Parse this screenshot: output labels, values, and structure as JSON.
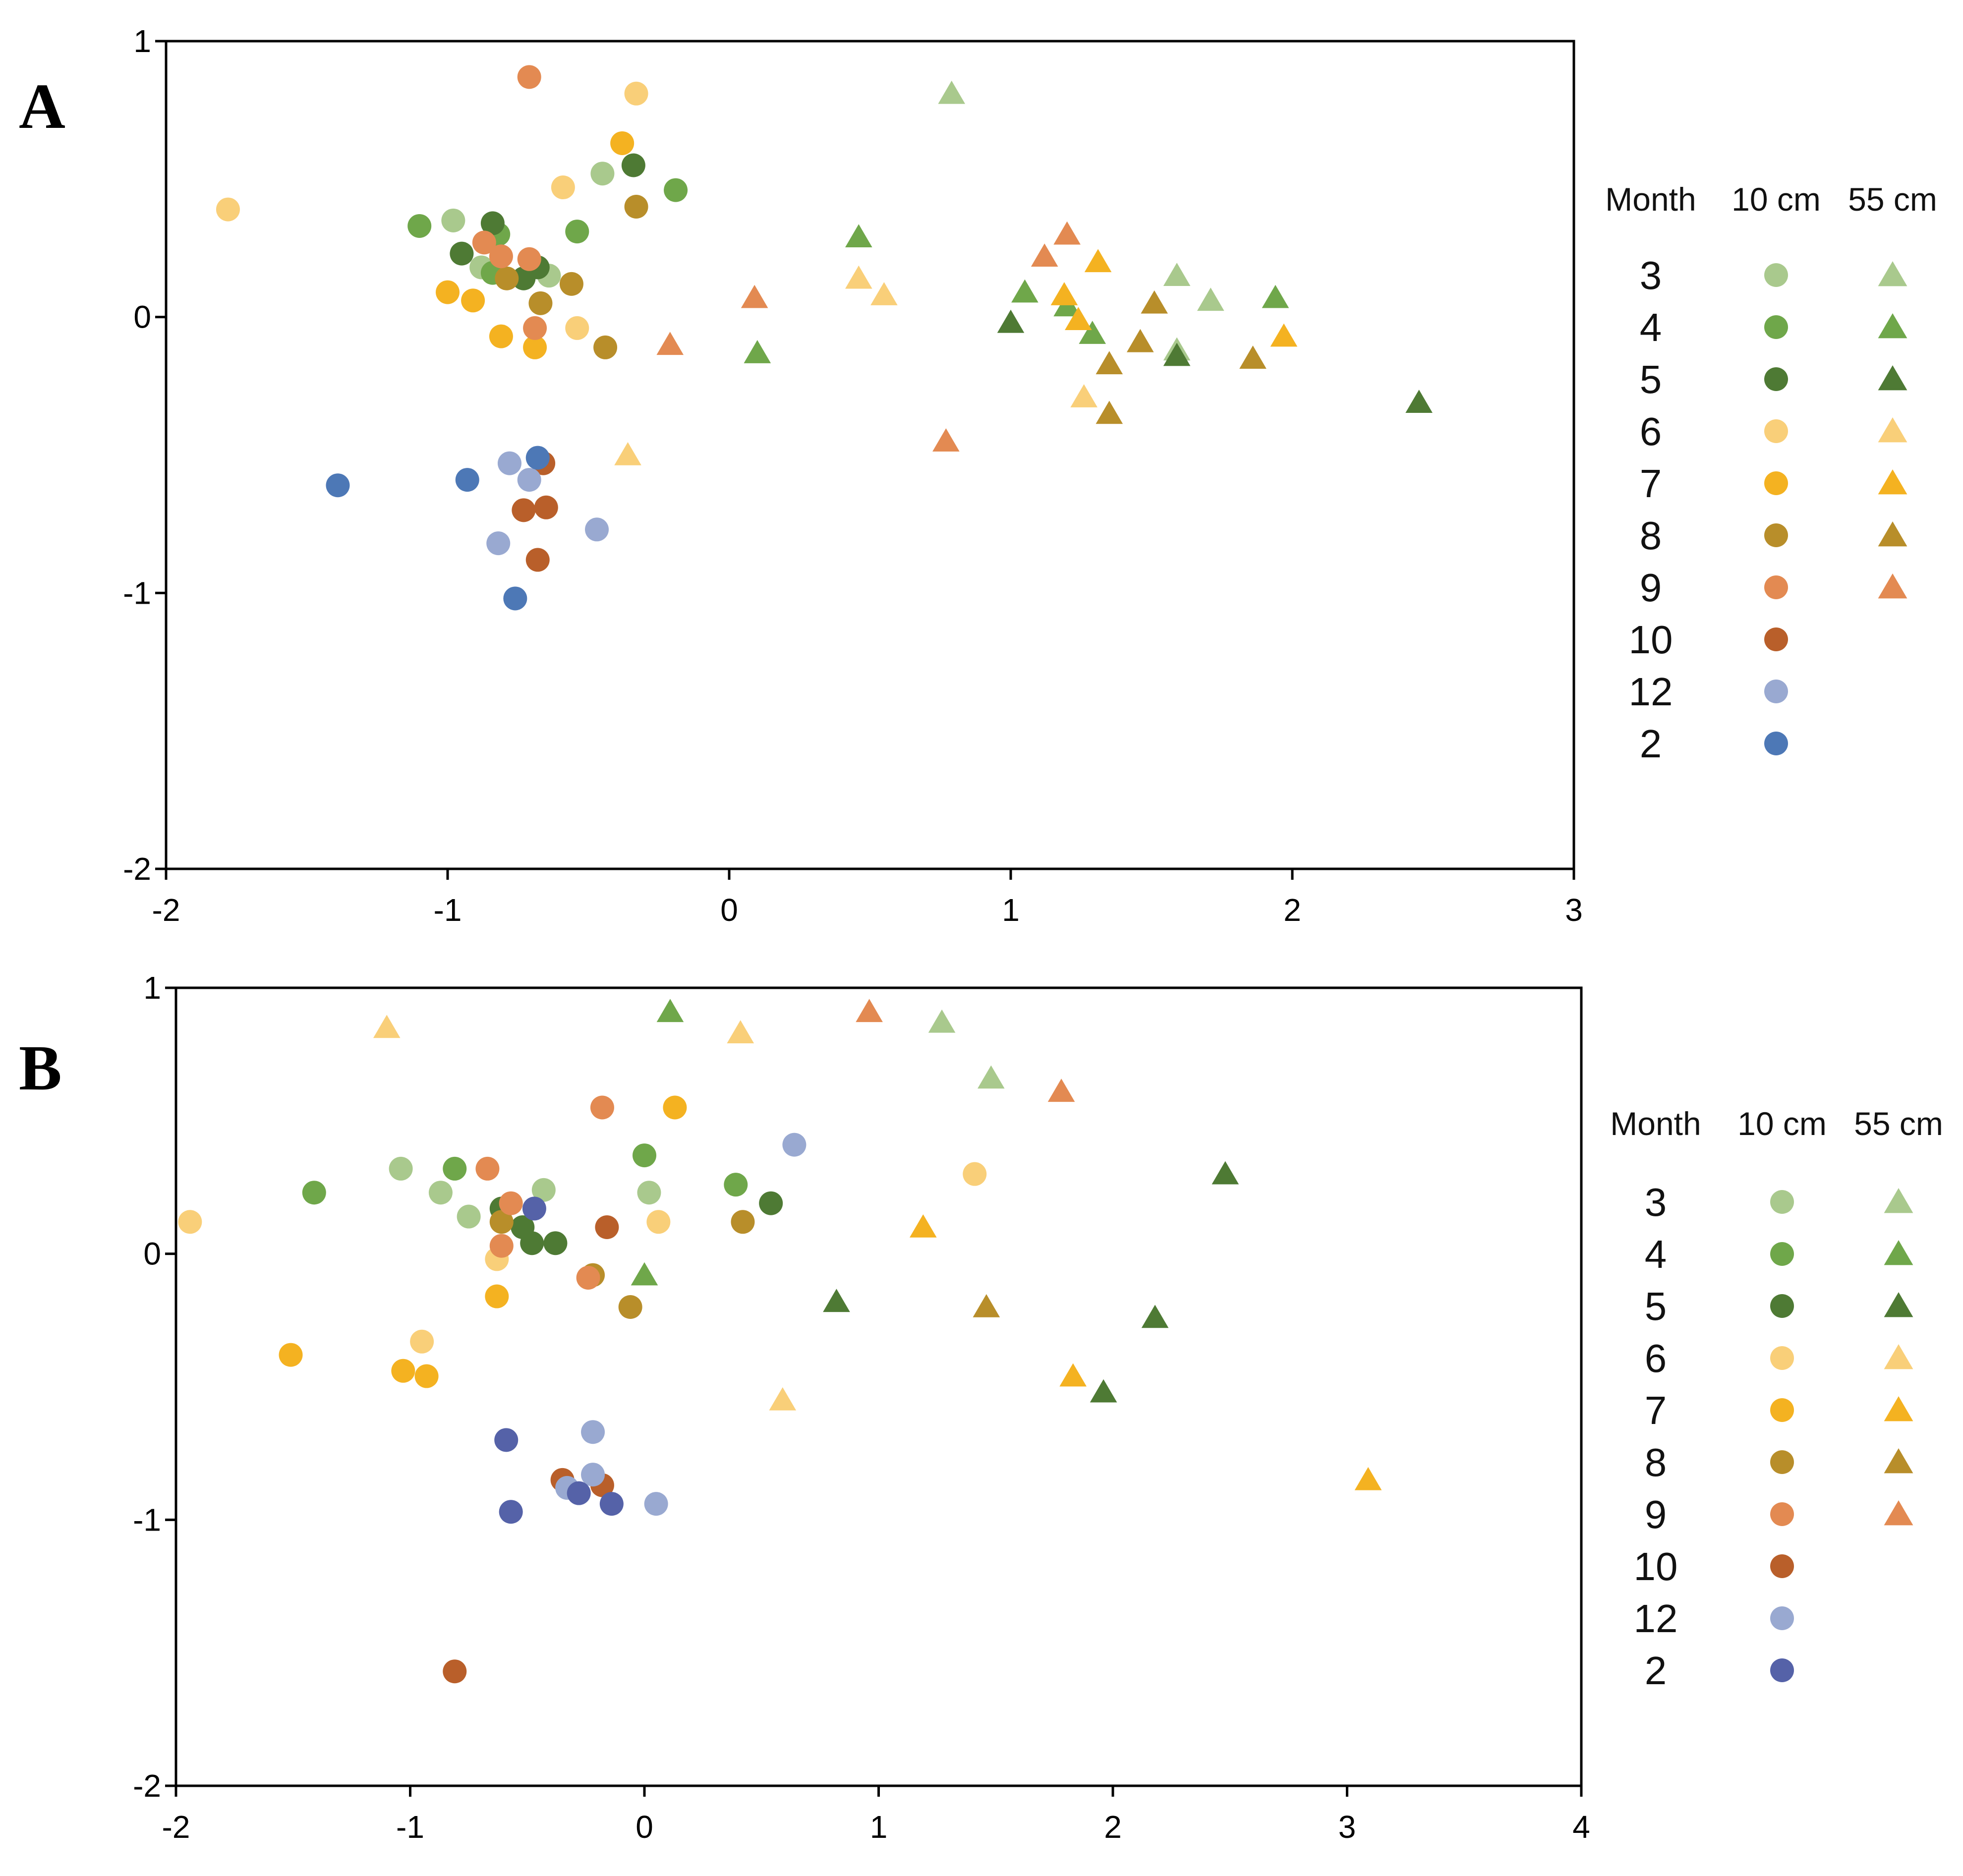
{
  "colors": {
    "m3": "#a9c98d",
    "m4": "#6fa74a",
    "m5": "#4e7a34",
    "m6": "#f9cf79",
    "m7": "#f4b221",
    "m8": "#b88e2a",
    "m9": "#e38a52",
    "m10": "#b95f2a",
    "m12": "#99a9d1",
    "m2": "#4d78b6",
    "m2B": "#5562a8",
    "axis": "#000000",
    "background": "#ffffff"
  },
  "chart_data": [
    {
      "type": "scatter",
      "panel": "A",
      "xlim": [
        -2,
        3
      ],
      "ylim": [
        -2,
        1
      ],
      "xticks": [
        "-2",
        "-1",
        "0",
        "1",
        "2",
        "3"
      ],
      "yticks": [
        "1",
        "0",
        "-1",
        "-2"
      ],
      "grid": false,
      "legend": {
        "position": "right",
        "header": [
          "Month",
          "10 cm",
          "55 cm"
        ],
        "months": [
          "3",
          "4",
          "5",
          "6",
          "7",
          "8",
          "9",
          "10",
          "12",
          "2"
        ],
        "has55": [
          true,
          true,
          true,
          true,
          true,
          true,
          true,
          false,
          false,
          false
        ]
      },
      "series": [
        {
          "name": "3 - 10 cm",
          "month": "3",
          "depth": "10 cm",
          "shape": "circle",
          "color": "m3",
          "points": [
            [
              -0.98,
              0.35
            ],
            [
              -0.45,
              0.52
            ],
            [
              -0.88,
              0.18
            ],
            [
              -0.64,
              0.15
            ]
          ]
        },
        {
          "name": "4 - 10 cm",
          "month": "4",
          "depth": "10 cm",
          "shape": "circle",
          "color": "m4",
          "points": [
            [
              -1.1,
              0.33
            ],
            [
              -0.54,
              0.31
            ],
            [
              -0.19,
              0.46
            ],
            [
              -0.84,
              0.16
            ],
            [
              -0.82,
              0.3
            ]
          ]
        },
        {
          "name": "5 - 10 cm",
          "month": "5",
          "depth": "10 cm",
          "shape": "circle",
          "color": "m5",
          "points": [
            [
              -0.95,
              0.23
            ],
            [
              -0.84,
              0.34
            ],
            [
              -0.34,
              0.55
            ],
            [
              -0.73,
              0.14
            ],
            [
              -0.68,
              0.18
            ]
          ]
        },
        {
          "name": "6 - 10 cm",
          "month": "6",
          "depth": "10 cm",
          "shape": "circle",
          "color": "m6",
          "points": [
            [
              -1.78,
              0.39
            ],
            [
              -0.59,
              0.47
            ],
            [
              -0.33,
              0.81
            ],
            [
              -0.54,
              -0.04
            ]
          ]
        },
        {
          "name": "7 - 10 cm",
          "month": "7",
          "depth": "10 cm",
          "shape": "circle",
          "color": "m7",
          "points": [
            [
              -1.0,
              0.09
            ],
            [
              -0.91,
              0.06
            ],
            [
              -0.81,
              -0.07
            ],
            [
              -0.69,
              -0.11
            ],
            [
              -0.38,
              0.63
            ]
          ]
        },
        {
          "name": "8 - 10 cm",
          "month": "8",
          "depth": "10 cm",
          "shape": "circle",
          "color": "m8",
          "points": [
            [
              -0.79,
              0.14
            ],
            [
              -0.67,
              0.05
            ],
            [
              -0.56,
              0.12
            ],
            [
              -0.44,
              -0.11
            ],
            [
              -0.33,
              0.4
            ]
          ]
        },
        {
          "name": "9 - 10 cm",
          "month": "9",
          "depth": "10 cm",
          "shape": "circle",
          "color": "m9",
          "points": [
            [
              -0.71,
              0.87
            ],
            [
              -0.87,
              0.27
            ],
            [
              -0.81,
              0.22
            ],
            [
              -0.71,
              0.21
            ],
            [
              -0.69,
              -0.04
            ]
          ]
        },
        {
          "name": "10 - 10 cm",
          "month": "10",
          "depth": "10 cm",
          "shape": "circle",
          "color": "m10",
          "points": [
            [
              -0.73,
              -0.7
            ],
            [
              -0.65,
              -0.69
            ],
            [
              -0.68,
              -0.88
            ],
            [
              -0.66,
              -0.53
            ]
          ]
        },
        {
          "name": "12 - 10 cm",
          "month": "12",
          "depth": "10 cm",
          "shape": "circle",
          "color": "m12",
          "points": [
            [
              -0.78,
              -0.53
            ],
            [
              -0.71,
              -0.59
            ],
            [
              -0.82,
              -0.82
            ],
            [
              -0.47,
              -0.77
            ]
          ]
        },
        {
          "name": "2 - 10 cm",
          "month": "2",
          "depth": "10 cm",
          "shape": "circle",
          "color": "m2",
          "points": [
            [
              -1.39,
              -0.61
            ],
            [
              -0.93,
              -0.59
            ],
            [
              -0.68,
              -0.51
            ],
            [
              -0.76,
              -1.02
            ]
          ]
        },
        {
          "name": "3 - 55 cm",
          "month": "3",
          "depth": "55 cm",
          "shape": "triangle",
          "color": "m3",
          "points": [
            [
              0.79,
              0.81
            ],
            [
              1.59,
              0.15
            ],
            [
              1.71,
              0.06
            ],
            [
              1.59,
              -0.12
            ]
          ]
        },
        {
          "name": "4 - 55 cm",
          "month": "4",
          "depth": "55 cm",
          "shape": "triangle",
          "color": "m4",
          "points": [
            [
              0.46,
              0.29
            ],
            [
              0.1,
              -0.13
            ],
            [
              1.05,
              0.09
            ],
            [
              1.2,
              0.04
            ],
            [
              1.29,
              -0.06
            ],
            [
              1.94,
              0.07
            ]
          ]
        },
        {
          "name": "5 - 55 cm",
          "month": "5",
          "depth": "55 cm",
          "shape": "triangle",
          "color": "m5",
          "points": [
            [
              1.0,
              -0.02
            ],
            [
              1.59,
              -0.14
            ],
            [
              2.45,
              -0.31
            ]
          ]
        },
        {
          "name": "6 - 55 cm",
          "month": "6",
          "depth": "55 cm",
          "shape": "triangle",
          "color": "m6",
          "points": [
            [
              -0.36,
              -0.5
            ],
            [
              0.46,
              0.14
            ],
            [
              0.55,
              0.08
            ],
            [
              1.26,
              -0.29
            ]
          ]
        },
        {
          "name": "7 - 55 cm",
          "month": "7",
          "depth": "55 cm",
          "shape": "triangle",
          "color": "m7",
          "points": [
            [
              1.19,
              0.08
            ],
            [
              1.24,
              -0.01
            ],
            [
              1.31,
              0.2
            ],
            [
              1.97,
              -0.07
            ]
          ]
        },
        {
          "name": "8 - 55 cm",
          "month": "8",
          "depth": "55 cm",
          "shape": "triangle",
          "color": "m8",
          "points": [
            [
              1.35,
              -0.17
            ],
            [
              1.35,
              -0.35
            ],
            [
              1.46,
              -0.09
            ],
            [
              1.51,
              0.05
            ],
            [
              1.86,
              -0.15
            ]
          ]
        },
        {
          "name": "9 - 55 cm",
          "month": "9",
          "depth": "55 cm",
          "shape": "triangle",
          "color": "m9",
          "points": [
            [
              -0.21,
              -0.1
            ],
            [
              0.09,
              0.07
            ],
            [
              0.77,
              -0.45
            ],
            [
              1.12,
              0.22
            ],
            [
              1.2,
              0.3
            ]
          ]
        }
      ]
    },
    {
      "type": "scatter",
      "panel": "B",
      "xlim": [
        -2,
        4
      ],
      "ylim": [
        -2,
        1
      ],
      "xticks": [
        "-2",
        "-1",
        "0",
        "1",
        "2",
        "3",
        "4"
      ],
      "yticks": [
        "1",
        "0",
        "-1",
        "-2"
      ],
      "grid": false,
      "legend": {
        "position": "right",
        "header": [
          "Month",
          "10 cm",
          "55 cm"
        ],
        "months": [
          "3",
          "4",
          "5",
          "6",
          "7",
          "8",
          "9",
          "10",
          "12",
          "2"
        ],
        "has55": [
          true,
          true,
          true,
          true,
          true,
          true,
          true,
          false,
          false,
          false
        ]
      },
      "series": [
        {
          "name": "3 - 10 cm",
          "month": "3",
          "depth": "10 cm",
          "shape": "circle",
          "color": "m3",
          "points": [
            [
              -1.04,
              0.32
            ],
            [
              -0.87,
              0.23
            ],
            [
              -0.75,
              0.14
            ],
            [
              -0.43,
              0.24
            ],
            [
              0.02,
              0.23
            ]
          ]
        },
        {
          "name": "4 - 10 cm",
          "month": "4",
          "depth": "10 cm",
          "shape": "circle",
          "color": "m4",
          "points": [
            [
              -1.41,
              0.23
            ],
            [
              -0.81,
              0.32
            ],
            [
              0.0,
              0.37
            ],
            [
              0.39,
              0.26
            ]
          ]
        },
        {
          "name": "5 - 10 cm",
          "month": "5",
          "depth": "10 cm",
          "shape": "circle",
          "color": "m5",
          "points": [
            [
              -0.61,
              0.17
            ],
            [
              -0.52,
              0.1
            ],
            [
              -0.48,
              0.04
            ],
            [
              -0.38,
              0.04
            ],
            [
              0.54,
              0.19
            ]
          ]
        },
        {
          "name": "6 - 10 cm",
          "month": "6",
          "depth": "10 cm",
          "shape": "circle",
          "color": "m6",
          "points": [
            [
              -1.94,
              0.12
            ],
            [
              -0.63,
              -0.02
            ],
            [
              -0.95,
              -0.33
            ],
            [
              0.06,
              0.12
            ],
            [
              1.41,
              0.3
            ]
          ]
        },
        {
          "name": "7 - 10 cm",
          "month": "7",
          "depth": "10 cm",
          "shape": "circle",
          "color": "m7",
          "points": [
            [
              -1.51,
              -0.38
            ],
            [
              -1.03,
              -0.44
            ],
            [
              -0.93,
              -0.46
            ],
            [
              -0.63,
              -0.16
            ],
            [
              0.13,
              0.55
            ]
          ]
        },
        {
          "name": "8 - 10 cm",
          "month": "8",
          "depth": "10 cm",
          "shape": "circle",
          "color": "m8",
          "points": [
            [
              -0.61,
              0.12
            ],
            [
              -0.22,
              -0.08
            ],
            [
              -0.06,
              -0.2
            ],
            [
              0.42,
              0.12
            ]
          ]
        },
        {
          "name": "9 - 10 cm",
          "month": "9",
          "depth": "10 cm",
          "shape": "circle",
          "color": "m9",
          "points": [
            [
              -0.67,
              0.32
            ],
            [
              -0.57,
              0.19
            ],
            [
              -0.61,
              0.03
            ],
            [
              -0.24,
              -0.09
            ],
            [
              -0.18,
              0.55
            ]
          ]
        },
        {
          "name": "10 - 10 cm",
          "month": "10",
          "depth": "10 cm",
          "shape": "circle",
          "color": "m10",
          "points": [
            [
              -0.81,
              -1.57
            ],
            [
              -0.35,
              -0.85
            ],
            [
              -0.18,
              -0.87
            ],
            [
              -0.16,
              0.1
            ]
          ]
        },
        {
          "name": "12 - 10 cm",
          "month": "12",
          "depth": "10 cm",
          "shape": "circle",
          "color": "m12",
          "points": [
            [
              -0.22,
              -0.67
            ],
            [
              -0.22,
              -0.83
            ],
            [
              -0.33,
              -0.88
            ],
            [
              0.05,
              -0.94
            ],
            [
              0.64,
              0.41
            ]
          ]
        },
        {
          "name": "2 - 10 cm",
          "month": "2",
          "depth": "10 cm",
          "shape": "circle",
          "color": "m2B",
          "points": [
            [
              -0.59,
              -0.7
            ],
            [
              -0.57,
              -0.97
            ],
            [
              -0.47,
              0.17
            ],
            [
              -0.28,
              -0.9
            ],
            [
              -0.14,
              -0.94
            ]
          ]
        },
        {
          "name": "3 - 55 cm",
          "month": "3",
          "depth": "55 cm",
          "shape": "triangle",
          "color": "m3",
          "points": [
            [
              1.27,
              0.87
            ],
            [
              1.48,
              0.66
            ]
          ]
        },
        {
          "name": "4 - 55 cm",
          "month": "4",
          "depth": "55 cm",
          "shape": "triangle",
          "color": "m4",
          "points": [
            [
              0.11,
              0.91
            ],
            [
              0.0,
              -0.08
            ]
          ]
        },
        {
          "name": "5 - 55 cm",
          "month": "5",
          "depth": "55 cm",
          "shape": "triangle",
          "color": "m5",
          "points": [
            [
              0.82,
              -0.18
            ],
            [
              1.96,
              -0.52
            ],
            [
              2.18,
              -0.24
            ],
            [
              2.48,
              0.3
            ]
          ]
        },
        {
          "name": "6 - 55 cm",
          "month": "6",
          "depth": "55 cm",
          "shape": "triangle",
          "color": "m6",
          "points": [
            [
              -1.1,
              0.85
            ],
            [
              0.41,
              0.83
            ],
            [
              0.59,
              -0.55
            ]
          ]
        },
        {
          "name": "7 - 55 cm",
          "month": "7",
          "depth": "55 cm",
          "shape": "triangle",
          "color": "m7",
          "points": [
            [
              1.19,
              0.1
            ],
            [
              1.83,
              -0.46
            ],
            [
              3.09,
              -0.85
            ]
          ]
        },
        {
          "name": "8 - 55 cm",
          "month": "8",
          "depth": "55 cm",
          "shape": "triangle",
          "color": "m8",
          "points": [
            [
              1.46,
              -0.2
            ]
          ]
        },
        {
          "name": "9 - 55 cm",
          "month": "9",
          "depth": "55 cm",
          "shape": "triangle",
          "color": "m9",
          "points": [
            [
              0.96,
              0.91
            ],
            [
              1.78,
              0.61
            ]
          ]
        }
      ]
    }
  ]
}
